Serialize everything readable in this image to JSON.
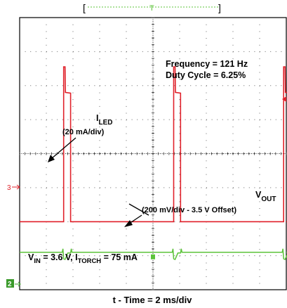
{
  "colors": {
    "led": "#e0222b",
    "vout": "#5cc33a",
    "grid": "#666666",
    "frame": "#000000",
    "ref": "#3a9a2a"
  },
  "header": {
    "left_bracket": "[",
    "right_bracket": "]",
    "trigger_marker": "T"
  },
  "markers": {
    "ch3": "3",
    "ch2": "2"
  },
  "annotations": {
    "freq": "Frequency = 121 Hz",
    "duty": "Duty Cycle = 6.25%",
    "iled_main": "I",
    "iled_sub": "LED",
    "iled_scale": "(20 mA/div)",
    "vout_main": "V",
    "vout_sub": "OUT",
    "vout_scale": "(200 mV/div - 3.5 V Offset)",
    "cond_v": "V",
    "cond_v_sub": "IN",
    "cond_mid": " = 3.6 V, I",
    "cond_i_sub": "TORCH",
    "cond_end": " = 75 mA"
  },
  "xlabel": "t - Time = 2 ms/div",
  "chart_data": {
    "type": "line",
    "title": "",
    "xlabel": "t - Time = 2 ms/div",
    "ylabel": "",
    "x_units": "ms",
    "x_per_div": 2,
    "x_divisions": 10,
    "y_divisions": 8,
    "grid": true,
    "frequency_hz": 121,
    "duty_cycle_pct": 6.25,
    "series": [
      {
        "name": "I LED",
        "scale": "20 mA/div",
        "baseline_div": 2.0,
        "pulse_high_div": 5.8,
        "spike_div": 6.55,
        "pulse_starts_ms": [
          3.3,
          11.55,
          19.8
        ],
        "pulse_width_ms": 0.52
      },
      {
        "name": "V OUT",
        "scale": "200 mV/div - 3.5 V Offset",
        "baseline_div": 1.1,
        "dip_div": 0.95,
        "events_ms": [
          3.3,
          11.55,
          19.8
        ]
      }
    ]
  }
}
